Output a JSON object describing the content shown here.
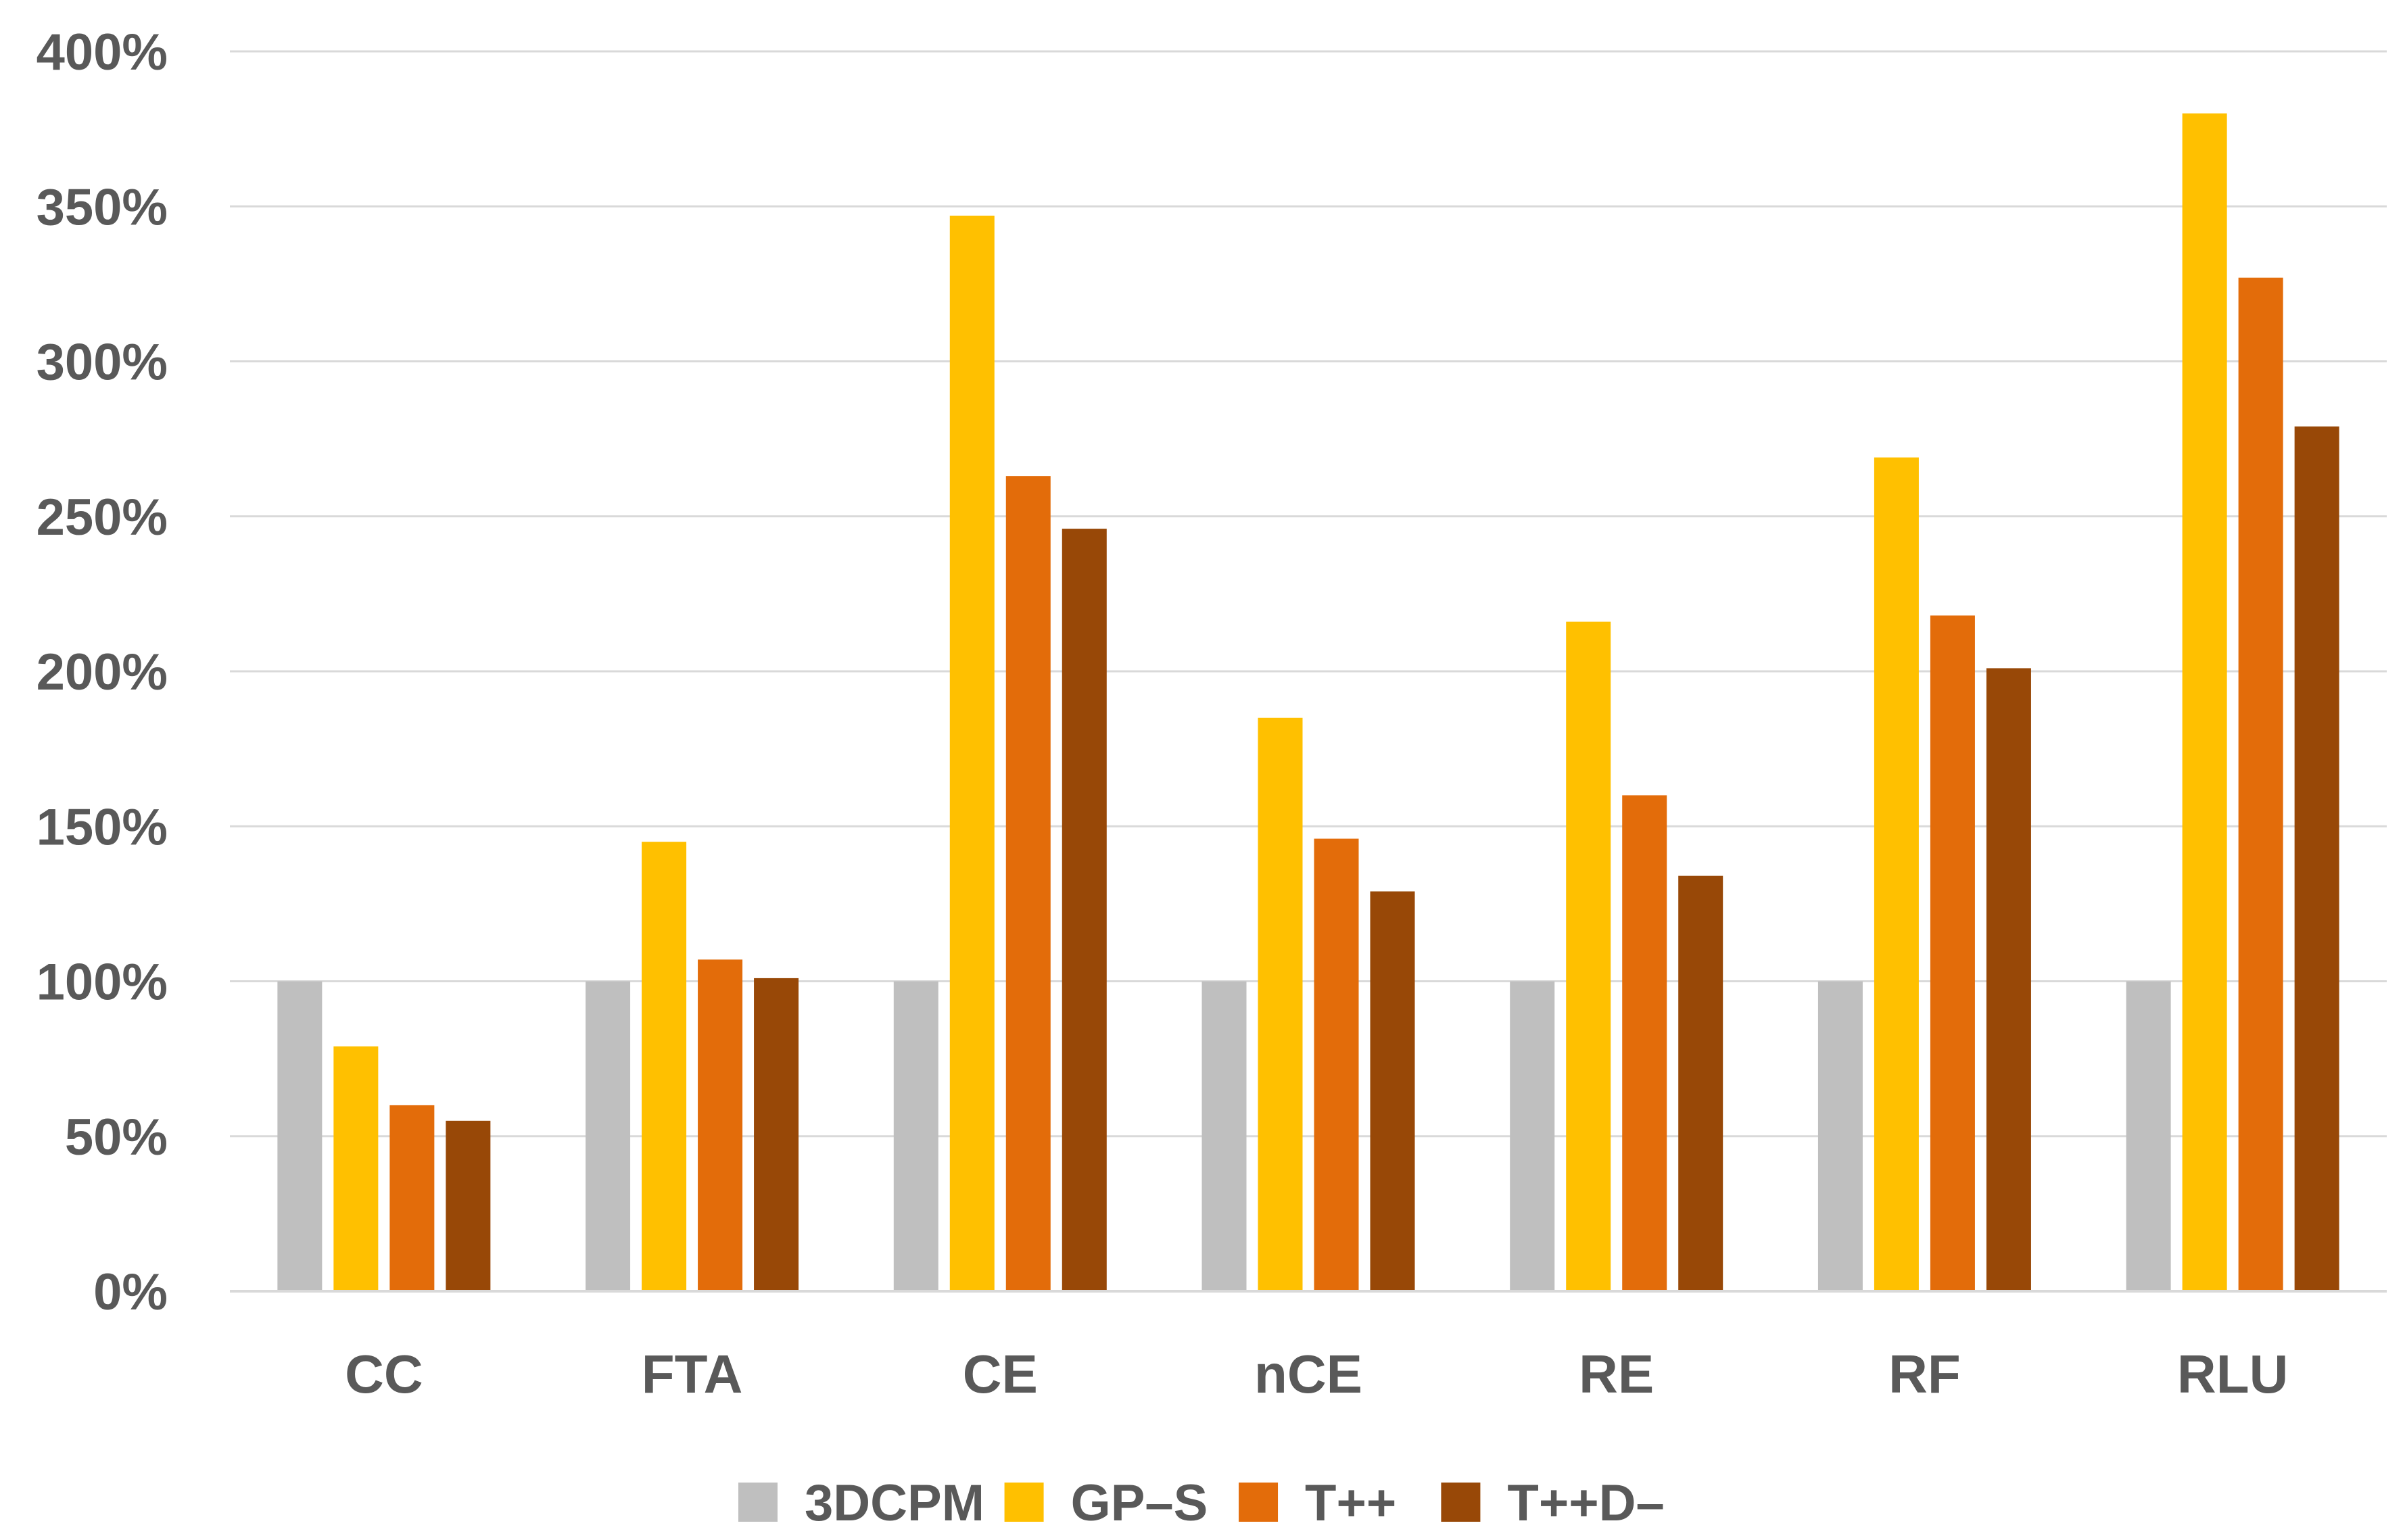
{
  "chart_data": {
    "type": "bar",
    "title": "",
    "xlabel": "",
    "ylabel": "",
    "ylim": [
      0,
      400
    ],
    "y_ticks": [
      0,
      50,
      100,
      150,
      200,
      250,
      300,
      350,
      400
    ],
    "y_tick_labels": [
      "0%",
      "50%",
      "100%",
      "150%",
      "200%",
      "250%",
      "300%",
      "350%",
      "400%"
    ],
    "grid": true,
    "legend_position": "bottom",
    "categories": [
      "CC",
      "FTA",
      "CE",
      "nCE",
      "RE",
      "RF",
      "RLU"
    ],
    "series": [
      {
        "name": "3DCPM",
        "color": "#bfbfbf",
        "values": [
          100,
          100,
          100,
          100,
          100,
          100,
          100
        ]
      },
      {
        "name": "GP–S",
        "color": "#ffc000",
        "values": [
          79,
          145,
          347,
          185,
          216,
          269,
          380
        ]
      },
      {
        "name": "T++",
        "color": "#e36c0a",
        "values": [
          60,
          107,
          263,
          146,
          160,
          218,
          327
        ]
      },
      {
        "name": "T++D–",
        "color": "#984807",
        "values": [
          55,
          101,
          246,
          129,
          134,
          201,
          279
        ]
      }
    ]
  }
}
